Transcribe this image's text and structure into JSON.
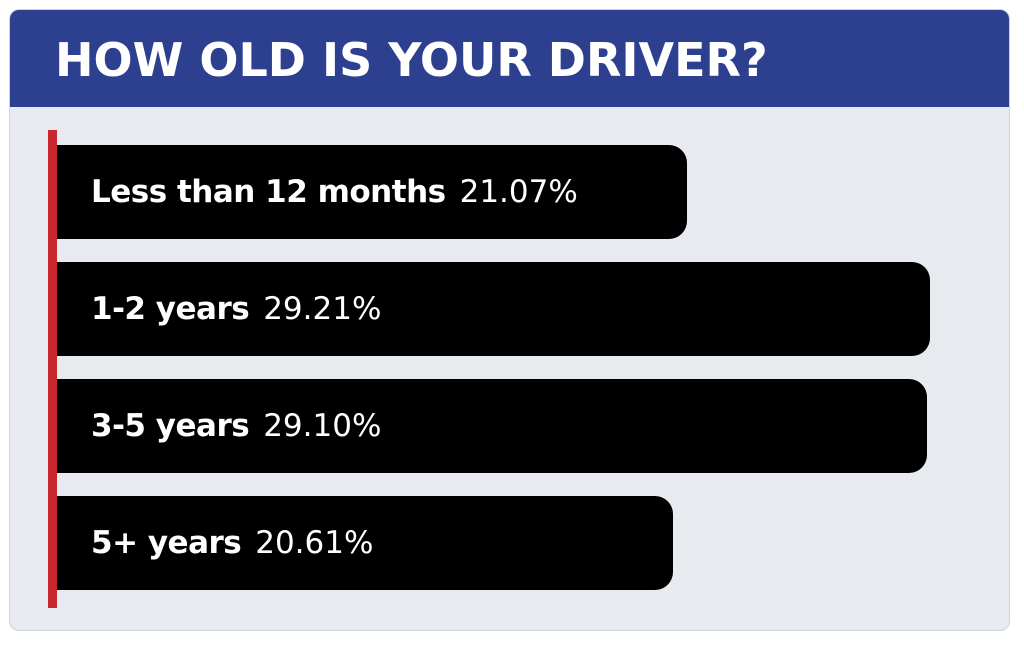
{
  "chart_data": {
    "type": "bar",
    "orientation": "horizontal",
    "title": "HOW OLD IS YOUR DRIVER?",
    "categories": [
      "Less than 12 months",
      "1-2 years",
      "3-5 years",
      "5+ years"
    ],
    "values": [
      21.07,
      29.21,
      29.1,
      20.61
    ],
    "value_labels": [
      "21.07%",
      "29.21%",
      "29.10%",
      "20.61%"
    ],
    "xlabel": "",
    "ylabel": "",
    "xlim": [
      0,
      31
    ],
    "grid": false,
    "legend": "none"
  },
  "colors": {
    "header": "#2d3f8f",
    "background": "#e7eaef",
    "bar": "#000000",
    "axis": "#c8282d",
    "label": "#ffffff"
  }
}
